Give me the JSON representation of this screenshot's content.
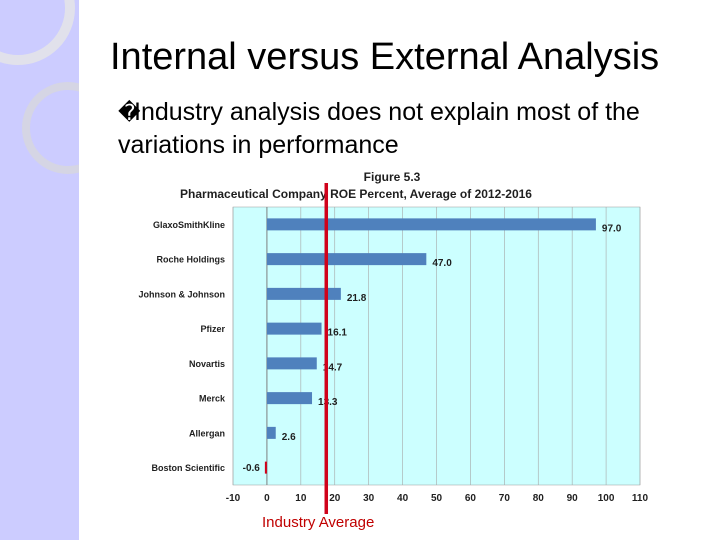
{
  "slide": {
    "title": "Internal versus External Analysis",
    "bullet_icon": "square-bullet-icon",
    "bullet_glyph": "�",
    "bullet_text_line1": "Industry analysis does not explain most of the",
    "bullet_text_line2": "variations in performance",
    "annotation": "Industry Average"
  },
  "colors": {
    "sidebar": "#ccccff",
    "plot_bg": "#ccffff",
    "bar": "#4f81bd",
    "average_line": "#d0021b"
  },
  "chart_data": {
    "type": "bar",
    "orientation": "horizontal",
    "figure_label": "Figure 5.3",
    "title": "Pharmaceutical Company ROE Percent, Average of 2012-2016",
    "categories": [
      "GlaxoSmithKline",
      "Roche Holdings",
      "Johnson & Johnson",
      "Pfizer",
      "Novartis",
      "Merck",
      "Allergan",
      "Boston Scientific"
    ],
    "values": [
      97.0,
      47.0,
      21.8,
      16.1,
      14.7,
      13.3,
      2.6,
      -0.6
    ],
    "data_labels": [
      "97.0",
      "47.0",
      "21.8",
      "16.1",
      "14.7",
      "13.3",
      "2.6",
      "-0.6"
    ],
    "xlim": [
      -10,
      110
    ],
    "xticks": [
      -10,
      0,
      10,
      20,
      30,
      40,
      50,
      60,
      70,
      80,
      90,
      100,
      110
    ],
    "grid": "vertical",
    "industry_average": 17.5
  }
}
